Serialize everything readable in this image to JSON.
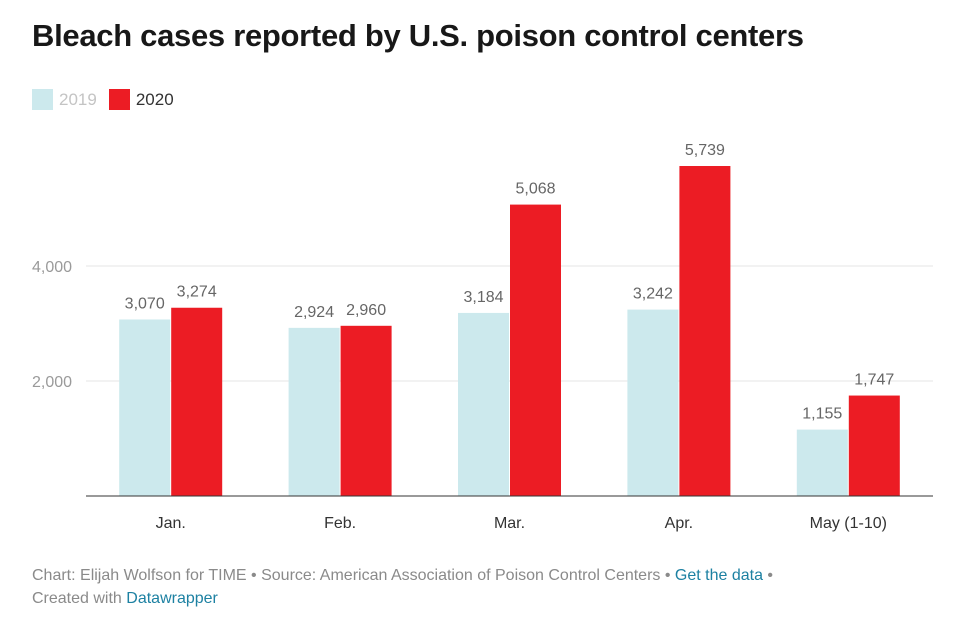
{
  "chart_data": {
    "type": "bar",
    "title": "Bleach cases reported by U.S. poison control centers",
    "categories": [
      "Jan.",
      "Feb.",
      "Mar.",
      "Apr.",
      "May (1-10)"
    ],
    "series": [
      {
        "name": "2019",
        "values": [
          3070,
          2924,
          3184,
          3242,
          1155
        ],
        "labels": [
          "3,070",
          "2,924",
          "3,184",
          "3,242",
          "1,155"
        ],
        "color": "#cce9ed"
      },
      {
        "name": "2020",
        "values": [
          3274,
          2960,
          5068,
          5739,
          1747
        ],
        "labels": [
          "3,274",
          "2,960",
          "5,068",
          "5,739",
          "1,747"
        ],
        "color": "#ec1c24"
      }
    ],
    "yticks": [
      2000,
      4000
    ],
    "ytick_labels": [
      "2,000",
      "4,000"
    ],
    "ylim": [
      0,
      6000
    ],
    "grid": true,
    "legend_position": "top-left"
  },
  "footer": {
    "credit": "Chart: Elijah Wolfson for TIME",
    "separator": " • ",
    "source": "Source: American Association of Poison Control Centers",
    "get_data": "Get the data",
    "created_with": "Created with",
    "tool": "Datawrapper"
  }
}
